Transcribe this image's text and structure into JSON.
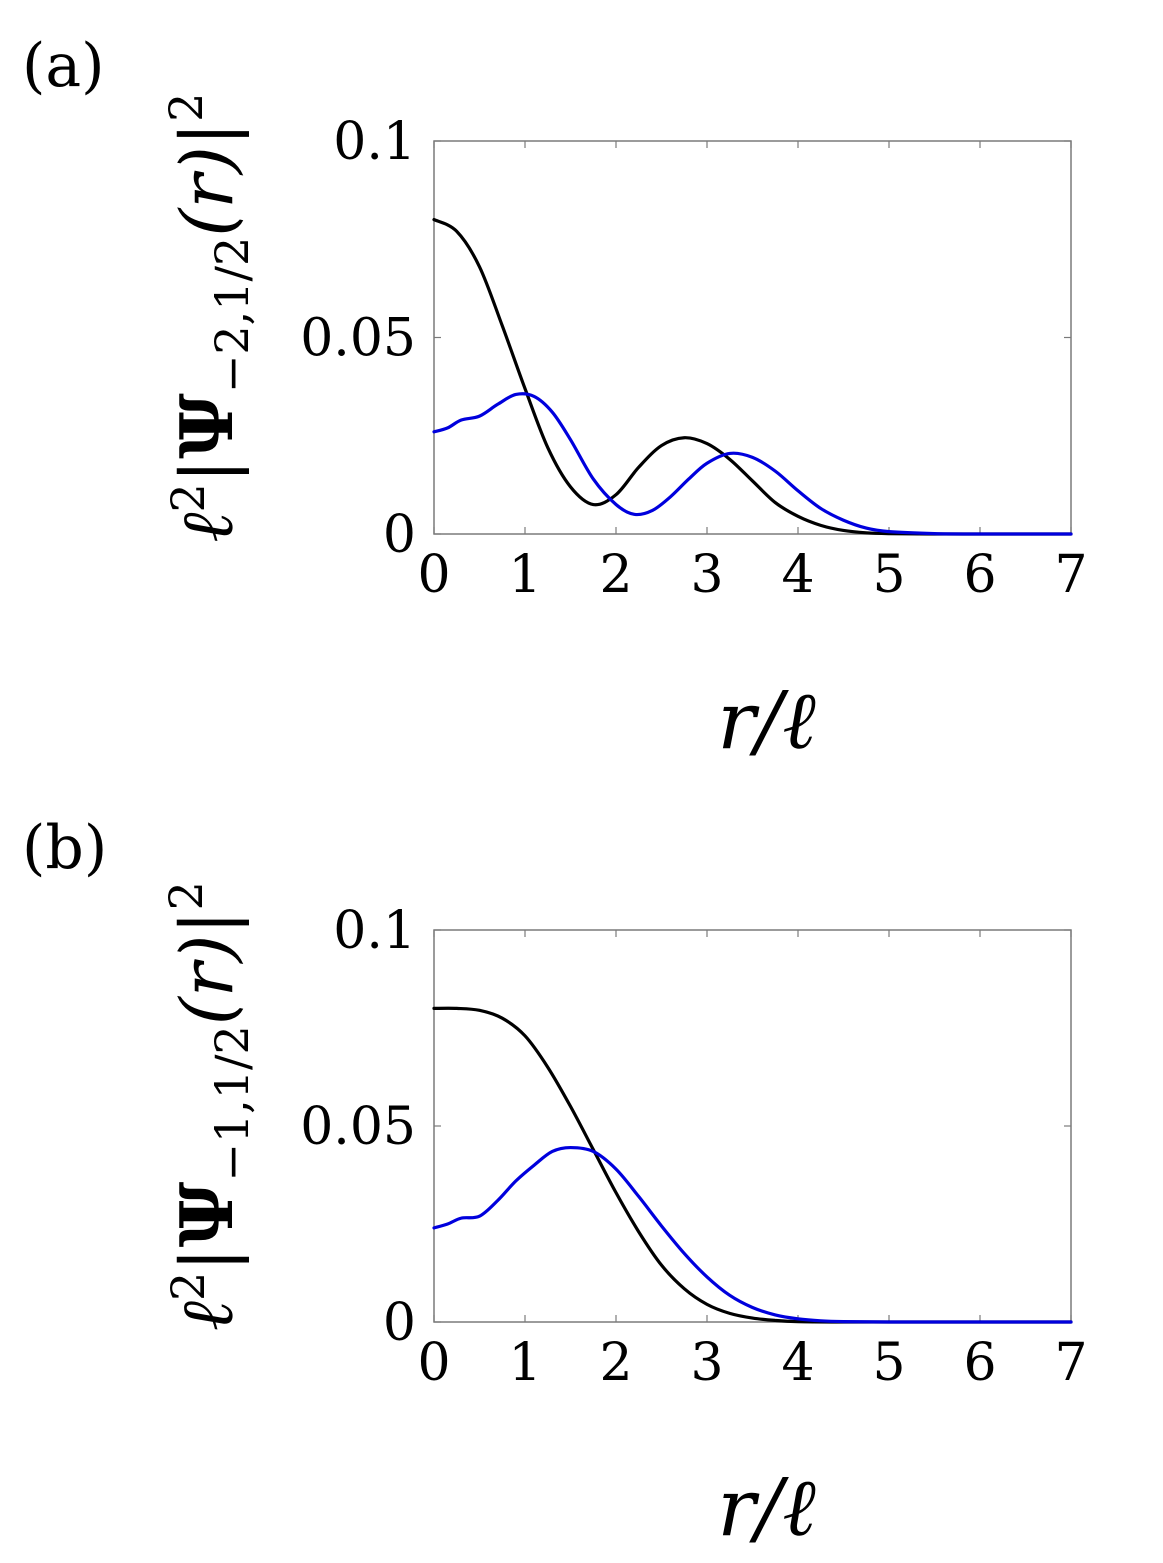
{
  "chart_data": [
    {
      "type": "line",
      "panel_label": "(a)",
      "ylabel_parts": {
        "prefix": "ℓ",
        "prefix_sup": "2",
        "bar_left": "|",
        "psi": "Ψ",
        "psi_sub": "−2,1/2",
        "arg": "(r)",
        "bar_right": "|",
        "sup": "2"
      },
      "xlabel": "r/ℓ",
      "xlim": [
        0,
        7
      ],
      "ylim": [
        0,
        0.1
      ],
      "xticks": [
        0,
        1,
        2,
        3,
        4,
        5,
        6,
        7
      ],
      "xtick_labels": [
        "0",
        "1",
        "2",
        "3",
        "4",
        "5",
        "6",
        "7"
      ],
      "yticks": [
        0,
        0.05,
        0.1
      ],
      "ytick_labels": [
        "0",
        "0.05",
        "0.1"
      ],
      "grid": false,
      "series": [
        {
          "color": "#000000",
          "x": [
            0,
            0.25,
            0.5,
            0.75,
            1.0,
            1.25,
            1.5,
            1.75,
            2.0,
            2.25,
            2.5,
            2.75,
            3.0,
            3.25,
            3.5,
            3.75,
            4.0,
            4.25,
            4.5,
            4.75,
            5.0,
            5.5,
            6.0,
            6.5,
            7.0
          ],
          "y": [
            0.08,
            0.077,
            0.068,
            0.053,
            0.037,
            0.022,
            0.012,
            0.0075,
            0.01,
            0.017,
            0.0225,
            0.0245,
            0.023,
            0.019,
            0.0135,
            0.008,
            0.0045,
            0.0022,
            0.0009,
            0.0003,
            0.0001,
            0.0,
            0.0,
            0.0,
            0.0
          ]
        },
        {
          "color": "#0000dd",
          "x": [
            0,
            0.15,
            0.3,
            0.5,
            0.7,
            0.9,
            1.1,
            1.3,
            1.5,
            1.75,
            2.0,
            2.2,
            2.4,
            2.6,
            2.8,
            3.0,
            3.25,
            3.5,
            3.75,
            4.0,
            4.25,
            4.5,
            4.75,
            5.0,
            5.5,
            6.0,
            6.5,
            7.0
          ],
          "y": [
            0.026,
            0.027,
            0.029,
            0.03,
            0.033,
            0.0355,
            0.035,
            0.031,
            0.024,
            0.014,
            0.0075,
            0.005,
            0.006,
            0.0095,
            0.014,
            0.018,
            0.0205,
            0.0195,
            0.016,
            0.011,
            0.0065,
            0.0035,
            0.0015,
            0.0006,
            0.0001,
            0.0,
            0.0,
            0.0
          ]
        }
      ]
    },
    {
      "type": "line",
      "panel_label": "(b)",
      "ylabel_parts": {
        "prefix": "ℓ",
        "prefix_sup": "2",
        "bar_left": "|",
        "psi": "Ψ",
        "psi_sub": "−1,1/2",
        "arg": "(r)",
        "bar_right": "|",
        "sup": "2"
      },
      "xlabel": "r/ℓ",
      "xlim": [
        0,
        7
      ],
      "ylim": [
        0,
        0.1
      ],
      "xticks": [
        0,
        1,
        2,
        3,
        4,
        5,
        6,
        7
      ],
      "xtick_labels": [
        "0",
        "1",
        "2",
        "3",
        "4",
        "5",
        "6",
        "7"
      ],
      "yticks": [
        0,
        0.05,
        0.1
      ],
      "ytick_labels": [
        "0",
        "0.05",
        "0.1"
      ],
      "grid": false,
      "series": [
        {
          "color": "#000000",
          "x": [
            0,
            0.25,
            0.5,
            0.75,
            1.0,
            1.25,
            1.5,
            1.75,
            2.0,
            2.25,
            2.5,
            2.75,
            3.0,
            3.25,
            3.5,
            3.75,
            4.0,
            4.5,
            5.0,
            5.5,
            6.0,
            6.5,
            7.0
          ],
          "y": [
            0.08,
            0.08,
            0.0795,
            0.0775,
            0.073,
            0.065,
            0.055,
            0.044,
            0.033,
            0.023,
            0.0145,
            0.0085,
            0.0045,
            0.0022,
            0.001,
            0.0004,
            0.0001,
            0.0,
            0.0,
            0.0,
            0.0,
            0.0,
            0.0
          ]
        },
        {
          "color": "#0000dd",
          "x": [
            0,
            0.15,
            0.3,
            0.5,
            0.7,
            0.9,
            1.1,
            1.3,
            1.5,
            1.75,
            2.0,
            2.25,
            2.5,
            2.75,
            3.0,
            3.25,
            3.5,
            3.75,
            4.0,
            4.25,
            4.5,
            5.0,
            5.5,
            6.0,
            6.5,
            7.0
          ],
          "y": [
            0.024,
            0.025,
            0.0265,
            0.027,
            0.031,
            0.036,
            0.04,
            0.0435,
            0.0445,
            0.0435,
            0.039,
            0.032,
            0.0245,
            0.0175,
            0.0115,
            0.0068,
            0.0037,
            0.0018,
            0.0008,
            0.0003,
            0.0001,
            0.0,
            0.0,
            0.0,
            0.0,
            0.0
          ]
        }
      ]
    }
  ]
}
